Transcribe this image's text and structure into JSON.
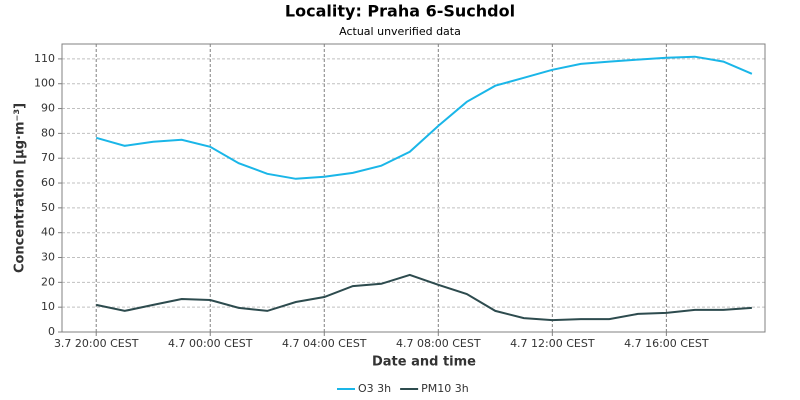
{
  "chart_data": {
    "type": "line",
    "title": "Locality: Praha 6-Suchdol",
    "subtitle": "Actual unverified data",
    "x_label": "Date and time",
    "y_label": "Concentration [µg·m⁻³]",
    "categories": [
      "3.7 20:00 CEST",
      null,
      null,
      null,
      "4.7 00:00 CEST",
      null,
      null,
      null,
      "4.7 04:00 CEST",
      null,
      null,
      null,
      "4.7 08:00 CEST",
      null,
      null,
      null,
      "4.7 12:00 CEST",
      null,
      null,
      null,
      "4.7 16:00 CEST",
      null,
      null,
      null
    ],
    "series": [
      {
        "name": "O3 3h",
        "color": "#1ab6e8",
        "values": [
          78.2,
          75,
          76.6,
          77.4,
          74.6,
          68,
          63.7,
          61.7,
          62.5,
          64.1,
          67,
          72.6,
          83,
          92.7,
          99.2,
          102.4,
          105.6,
          108,
          108.9,
          109.7,
          110.5,
          110.9,
          108.9,
          104
        ]
      },
      {
        "name": "PM10 3h",
        "color": "#2d4b4e",
        "values": [
          10.9,
          8.5,
          10.9,
          13.3,
          12.9,
          9.7,
          8.5,
          12.1,
          14.1,
          18.5,
          19.4,
          23,
          19,
          15.3,
          8.5,
          5.6,
          4.8,
          5.2,
          5.2,
          7.3,
          7.7,
          8.9,
          8.9,
          9.7
        ]
      }
    ],
    "ylim": [
      0,
      116
    ],
    "yticks": [
      0,
      10,
      20,
      30,
      40,
      50,
      60,
      70,
      80,
      90,
      100,
      110
    ],
    "grid": true,
    "legend": "bottom"
  }
}
